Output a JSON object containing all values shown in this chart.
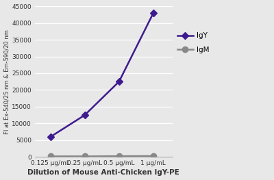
{
  "x_labels": [
    "0.125 μg/mL",
    "0.25 μg/mL",
    "0.5 μg/mL",
    "1 μg/mL"
  ],
  "x_values": [
    1,
    2,
    3,
    4
  ],
  "IgY_values": [
    6000,
    12500,
    22500,
    43000
  ],
  "IgM_values": [
    200,
    200,
    250,
    300
  ],
  "IgY_color": "#3d1a8e",
  "IgM_color": "#888888",
  "IgY_label": "IgY",
  "IgM_label": "IgM",
  "ylabel": "FI at Ex-540/25 nm & Em-590/20 nm",
  "xlabel": "Dilution of Mouse Anti-Chicken IgY-PE",
  "ylim": [
    0,
    45000
  ],
  "yticks": [
    0,
    5000,
    10000,
    15000,
    20000,
    25000,
    30000,
    35000,
    40000,
    45000
  ],
  "plot_bg": "#e8e8e8",
  "fig_bg": "#e8e8e8",
  "marker_IgY": "D",
  "marker_IgM": "o",
  "marker_size_IgY": 5,
  "marker_size_IgM": 6,
  "line_width": 1.8
}
